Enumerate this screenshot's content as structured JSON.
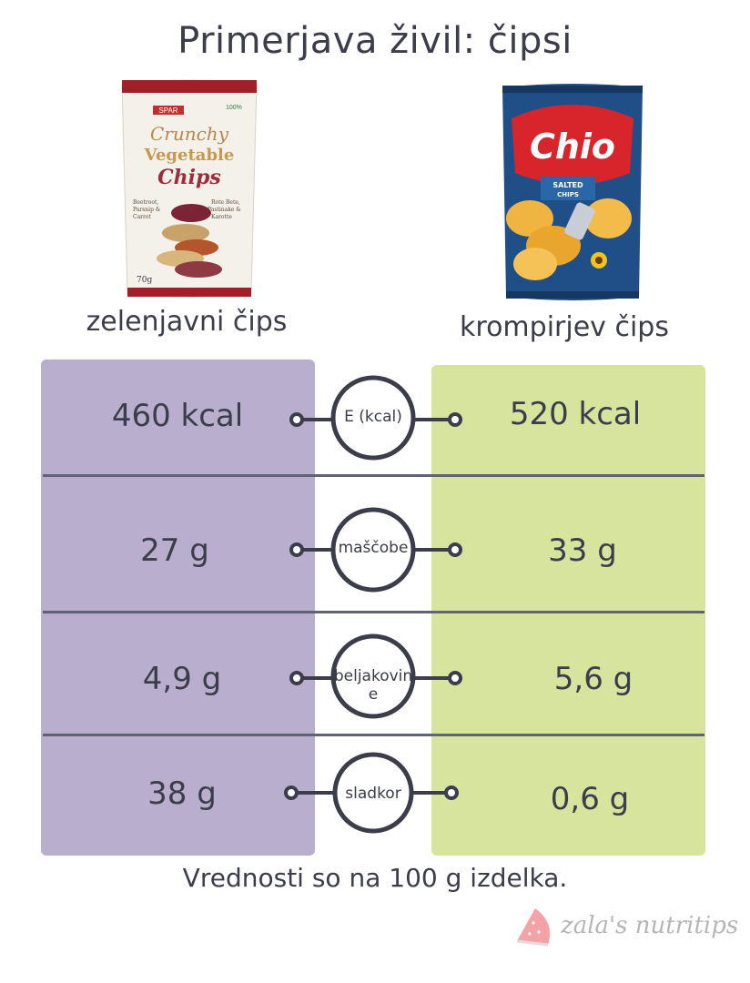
{
  "title": "Primerjava živil: čipsi",
  "products": {
    "left": {
      "name": "zelenjavni čips",
      "package": {
        "brand": "SPAR",
        "line1": "Crunchy",
        "line2": "Vegetable",
        "line3": "Chips",
        "weight": "70g",
        "badge": "100%",
        "desc_left": "Beetroot, Parsnip & Carrot",
        "desc_right": "Rote Bete, Pastinake & Karotte"
      }
    },
    "right": {
      "name": "krompirjev čips",
      "package": {
        "brand": "Chio",
        "subtitle1": "SALTED",
        "subtitle2": "CHIPS"
      }
    }
  },
  "rows": [
    {
      "nutrient": "E (kcal)",
      "left": "460 kcal",
      "right": "520 kcal"
    },
    {
      "nutrient": "maščobe",
      "left": "27 g",
      "right": "33 g"
    },
    {
      "nutrient": "beljakovine",
      "left": "4,9 g",
      "right": "5,6 g"
    },
    {
      "nutrient": "sladkor",
      "left": "38 g",
      "right": "0,6 g"
    }
  ],
  "footer": "Vrednosti so na 100 g izdelka.",
  "brand": "zala's nutritips",
  "colors": {
    "left_column": "#b9aecd",
    "right_column": "#d6e49e",
    "text": "#3b3d4a",
    "divider": "#5f6375"
  }
}
